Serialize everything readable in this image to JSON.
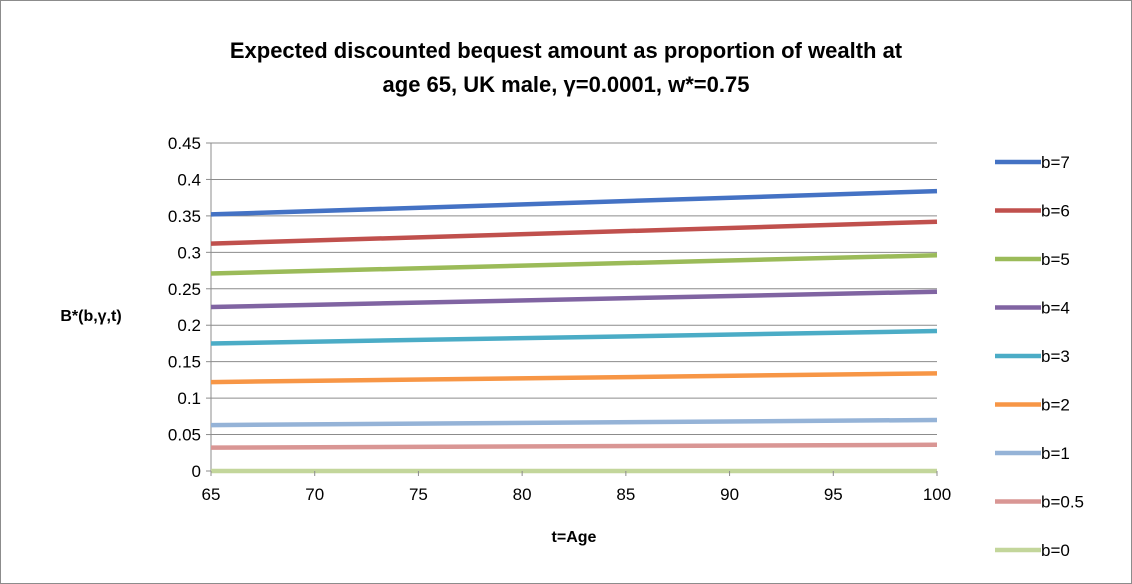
{
  "chart_data": {
    "type": "line",
    "title_lines": [
      "Expected discounted bequest amount as proportion of wealth at",
      "age 65, UK male, γ=0.0001, w*=0.75"
    ],
    "xlabel": "t=Age",
    "ylabel": "B*(b,γ,t)",
    "xlim": [
      65,
      100
    ],
    "ylim": [
      0,
      0.45
    ],
    "x_ticks": [
      65,
      70,
      75,
      80,
      85,
      90,
      95,
      100
    ],
    "x_tick_labels": [
      "65",
      "70",
      "75",
      "80",
      "85",
      "90",
      "95",
      "100"
    ],
    "y_ticks": [
      0,
      0.05,
      0.1,
      0.15,
      0.2,
      0.25,
      0.3,
      0.35,
      0.4,
      0.45
    ],
    "y_tick_labels": [
      "0",
      "0.05",
      "0.1",
      "0.15",
      "0.2",
      "0.25",
      "0.3",
      "0.35",
      "0.4",
      "0.45"
    ],
    "grid": "horizontal",
    "legend_position": "right",
    "x": [
      65,
      100
    ],
    "series": [
      {
        "name": "b=7",
        "color": "#4472c4",
        "values": [
          0.352,
          0.384
        ]
      },
      {
        "name": "b=6",
        "color": "#c0504d",
        "values": [
          0.312,
          0.342
        ]
      },
      {
        "name": "b=5",
        "color": "#9bbb59",
        "values": [
          0.271,
          0.296
        ]
      },
      {
        "name": "b=4",
        "color": "#8064a2",
        "values": [
          0.225,
          0.246
        ]
      },
      {
        "name": "b=3",
        "color": "#4bacc6",
        "values": [
          0.175,
          0.192
        ]
      },
      {
        "name": "b=2",
        "color": "#f79646",
        "values": [
          0.122,
          0.134
        ]
      },
      {
        "name": "b=1",
        "color": "#95b3d7",
        "values": [
          0.063,
          0.07
        ]
      },
      {
        "name": "b=0.5",
        "color": "#d99694",
        "values": [
          0.032,
          0.036
        ]
      },
      {
        "name": "b=0",
        "color": "#c3d69b",
        "values": [
          0.0,
          0.0
        ]
      }
    ]
  }
}
